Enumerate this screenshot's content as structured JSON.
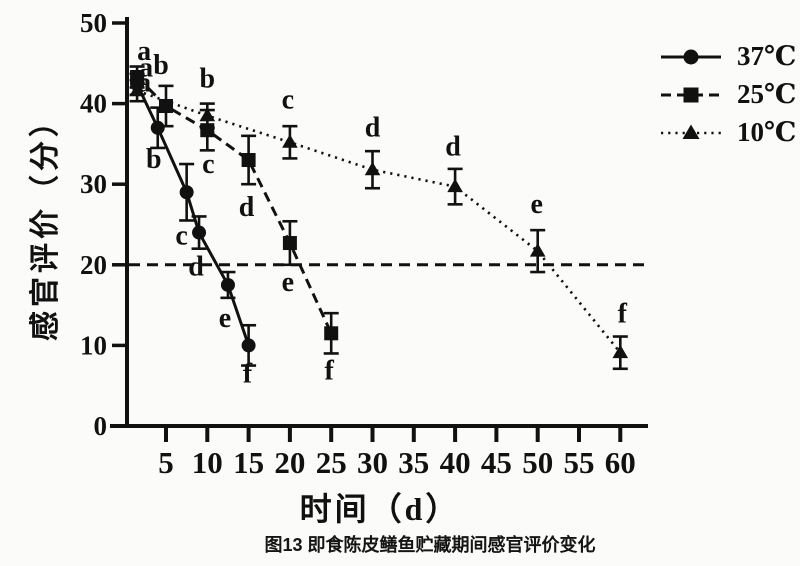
{
  "figure": {
    "caption": "图13 即食陈皮鳝鱼贮藏期间感官评价变化"
  },
  "chart_data": {
    "type": "line",
    "title": "",
    "xlabel": "时间（d）",
    "ylabel": "感官评价（分）",
    "xlim": [
      0,
      63
    ],
    "ylim": [
      0,
      50
    ],
    "x_ticks": [
      5,
      10,
      15,
      20,
      25,
      30,
      35,
      40,
      45,
      50,
      55,
      60
    ],
    "y_ticks": [
      0,
      10,
      20,
      30,
      40,
      50
    ],
    "grid": false,
    "legend_position": "outside-right-top",
    "threshold": {
      "y": 20,
      "style": "dashed"
    },
    "colors": {
      "ink": "#111111",
      "background": "#fbfbf9"
    },
    "series": [
      {
        "name": "37℃",
        "marker": "circle",
        "line_style": "solid",
        "points": [
          {
            "x": 1.5,
            "y": 42.4,
            "err": 1.3,
            "label": "a",
            "ldx": 9,
            "ldy": -17
          },
          {
            "x": 4,
            "y": 37,
            "err": 2.5,
            "label": "b",
            "ldx": -4,
            "ldy": 31
          },
          {
            "x": 7.5,
            "y": 29,
            "err": 3.5,
            "label": "c",
            "ldx": -5,
            "ldy": 43
          },
          {
            "x": 9,
            "y": 24,
            "err": 2,
            "label": "d",
            "ldx": -3,
            "ldy": 34
          },
          {
            "x": 12.5,
            "y": 17.5,
            "err": 1.6,
            "label": "e",
            "ldx": -3,
            "ldy": 33
          },
          {
            "x": 15,
            "y": 10,
            "err": 2.5,
            "label": "f",
            "ldx": -1,
            "ldy": 28
          }
        ]
      },
      {
        "name": "25℃",
        "marker": "square",
        "line_style": "dashed",
        "points": [
          {
            "x": 1.5,
            "y": 43.3,
            "err": 1.3,
            "label": "a",
            "ldx": 7,
            "ldy": -26
          },
          {
            "x": 5,
            "y": 39.7,
            "err": 2.5,
            "label": "b",
            "ldx": -5,
            "ldy": -41
          },
          {
            "x": 10,
            "y": 36.7,
            "err": 2.5,
            "label": "c",
            "ldx": 1,
            "ldy": 34
          },
          {
            "x": 15,
            "y": 33,
            "err": 3,
            "label": "d",
            "ldx": -2,
            "ldy": 47
          },
          {
            "x": 20,
            "y": 22.7,
            "err": 2.7,
            "label": "e",
            "ldx": -2,
            "ldy": 39
          },
          {
            "x": 25,
            "y": 11.5,
            "err": 2.5,
            "label": "f",
            "ldx": -2,
            "ldy": 37
          }
        ]
      },
      {
        "name": "10℃",
        "marker": "triangle",
        "line_style": "dotted",
        "points": [
          {
            "x": 1.5,
            "y": 41.6,
            "err": 1.3,
            "label": "a",
            "ldx": 7,
            "ldy": -8
          },
          {
            "x": 10,
            "y": 38.5,
            "err": 1.5,
            "label": "b",
            "ldx": 0,
            "ldy": -37
          },
          {
            "x": 20,
            "y": 35.2,
            "err": 2,
            "label": "c",
            "ldx": -2,
            "ldy": -43
          },
          {
            "x": 30,
            "y": 31.8,
            "err": 2.3,
            "label": "d",
            "ldx": 0,
            "ldy": -42
          },
          {
            "x": 40,
            "y": 29.7,
            "err": 2.2,
            "label": "d",
            "ldx": -2,
            "ldy": -40
          },
          {
            "x": 50,
            "y": 21.7,
            "err": 2.6,
            "label": "e",
            "ldx": -1,
            "ldy": -47
          },
          {
            "x": 60,
            "y": 9.1,
            "err": 2,
            "label": "f",
            "ldx": 2,
            "ldy": -39
          }
        ]
      }
    ]
  }
}
